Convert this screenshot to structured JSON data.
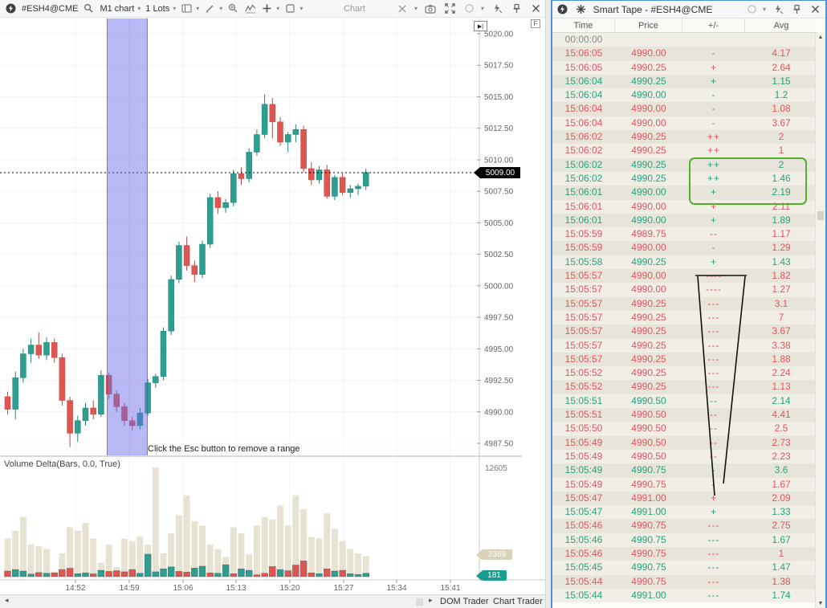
{
  "chart_toolbar": {
    "symbol": "#ESH4@CME",
    "timeframe": "M1 chart",
    "lots": "1 Lots",
    "title": "Chart"
  },
  "chart": {
    "last_price": "5009.00",
    "price_ticks": [
      "5020.00",
      "5017.50",
      "5015.00",
      "5012.50",
      "5010.00",
      "5007.50",
      "5005.00",
      "5002.50",
      "5000.00",
      "4997.50",
      "4995.00",
      "4992.50",
      "4990.00",
      "4987.50"
    ],
    "time_ticks": [
      "14:52",
      "14:59",
      "15:06",
      "15:13",
      "15:20",
      "15:27",
      "15:34",
      "15:41"
    ],
    "range_hint": "Click the Esc button to remove a range",
    "indicator_label": "Volume Delta(Bars, 0.0, True)",
    "goto_latest_label": "▶|",
    "f_badge": "F",
    "volume_axis_top": "12605",
    "volume_badge": "2369",
    "delta_badge": "181"
  },
  "chart_data": {
    "type": "candlestick_with_volume_delta",
    "title": "#ESH4@CME M1",
    "price_range": [
      4987.5,
      5020.0
    ],
    "candles": [
      [
        4991.2,
        4991.6,
        4989.8,
        4990.2
      ],
      [
        4990.2,
        4993.2,
        4989.4,
        4992.7
      ],
      [
        4992.7,
        4995.0,
        4992.3,
        4994.6
      ],
      [
        4994.6,
        4995.8,
        4993.9,
        4995.3
      ],
      [
        4995.3,
        4996.3,
        4994.2,
        4994.5
      ],
      [
        4994.5,
        4995.9,
        4994.1,
        4995.5
      ],
      [
        4995.5,
        4995.8,
        4993.9,
        4994.3
      ],
      [
        4994.3,
        4994.6,
        4990.5,
        4990.9
      ],
      [
        4990.9,
        4991.2,
        4987.2,
        4988.3
      ],
      [
        4988.3,
        4989.7,
        4987.6,
        4989.3
      ],
      [
        4989.3,
        4990.7,
        4988.9,
        4990.3
      ],
      [
        4990.3,
        4990.9,
        4989.4,
        4989.8
      ],
      [
        4989.8,
        4993.3,
        4989.6,
        4992.9
      ],
      [
        4992.9,
        4993.1,
        4991.0,
        4991.4
      ],
      [
        4991.4,
        4991.7,
        4990.0,
        4990.4
      ],
      [
        4990.4,
        4990.7,
        4988.9,
        4989.3
      ],
      [
        4989.3,
        4989.6,
        4988.5,
        4988.9
      ],
      [
        4988.9,
        4990.3,
        4988.6,
        4989.9
      ],
      [
        4989.9,
        4992.6,
        4989.7,
        4992.3
      ],
      [
        4992.3,
        4993.0,
        4991.9,
        4992.8
      ],
      [
        4992.8,
        4996.7,
        4992.5,
        4996.4
      ],
      [
        4996.4,
        5000.8,
        4996.1,
        5000.5
      ],
      [
        5000.5,
        5003.5,
        5000.2,
        5003.2
      ],
      [
        5003.2,
        5003.9,
        5001.2,
        5001.6
      ],
      [
        5001.6,
        5002.0,
        5000.3,
        5000.9
      ],
      [
        5000.9,
        5003.6,
        5000.6,
        5003.3
      ],
      [
        5003.3,
        5007.3,
        5003.0,
        5007.0
      ],
      [
        5007.0,
        5007.5,
        5005.7,
        5006.2
      ],
      [
        5006.2,
        5006.9,
        5005.8,
        5006.6
      ],
      [
        5006.6,
        5009.2,
        5006.3,
        5008.9
      ],
      [
        5008.9,
        5009.4,
        5008.0,
        5008.5
      ],
      [
        5008.5,
        5010.9,
        5008.2,
        5010.6
      ],
      [
        5010.6,
        5012.4,
        5010.3,
        5012.0
      ],
      [
        5012.0,
        5015.2,
        5011.7,
        5014.4
      ],
      [
        5014.4,
        5014.9,
        5011.7,
        5013.0
      ],
      [
        5013.0,
        5013.4,
        5011.1,
        5011.4
      ],
      [
        5011.4,
        5012.2,
        5010.6,
        5012.0
      ],
      [
        5012.0,
        5012.8,
        5011.4,
        5012.4
      ],
      [
        5012.4,
        5012.7,
        5009.0,
        5009.3
      ],
      [
        5009.3,
        5009.8,
        5008.0,
        5008.4
      ],
      [
        5008.4,
        5009.5,
        5008.1,
        5009.2
      ],
      [
        5009.2,
        5009.6,
        5006.9,
        5007.1
      ],
      [
        5007.1,
        5008.8,
        5006.8,
        5008.6
      ],
      [
        5008.6,
        5008.9,
        5007.2,
        5007.4
      ],
      [
        5007.4,
        5008.0,
        5007.0,
        5007.7
      ],
      [
        5007.7,
        5008.1,
        5007.2,
        5007.9
      ],
      [
        5007.9,
        5009.3,
        5007.6,
        5009.0
      ]
    ],
    "volumes": [
      4400,
      5300,
      6900,
      3700,
      3500,
      3200,
      600,
      2700,
      5700,
      5300,
      6200,
      4400,
      1600,
      3700,
      1100,
      4400,
      4100,
      4600,
      3700,
      12605,
      2700,
      5000,
      7100,
      9400,
      6400,
      5900,
      3700,
      3200,
      2300,
      5700,
      5000,
      2600,
      5900,
      6900,
      6600,
      8200,
      5900,
      9400,
      7800,
      4600,
      4400,
      7300,
      5500,
      4100,
      3200,
      2700,
      2369
    ],
    "deltas": [
      -300,
      380,
      300,
      140,
      -220,
      180,
      -200,
      -380,
      -450,
      160,
      200,
      -150,
      340,
      -280,
      -320,
      -260,
      -380,
      180,
      1200,
      260,
      420,
      520,
      -280,
      -240,
      460,
      560,
      -200,
      180,
      640,
      -160,
      420,
      340,
      -100,
      -180,
      -540,
      380,
      -320,
      -620,
      -840,
      -200,
      160,
      -420,
      300,
      -340,
      160,
      120,
      181
    ],
    "volume_max": 12605,
    "selected_range_candles": [
      13,
      18
    ]
  },
  "bottom_bar": {
    "left_arrow": "◂",
    "right_arrow": "▸",
    "tab1": "DOM Trader",
    "tab2": "Chart Trader"
  },
  "tape": {
    "title": "Smart Tape - #ESH4@CME",
    "columns": [
      "Time",
      "Price",
      "+/-",
      "Avg"
    ],
    "scroll_up": "▲",
    "scroll_down": "▼",
    "rows": [
      {
        "t": "00:00:00",
        "p": "",
        "s": "",
        "a": "",
        "c": "x"
      },
      {
        "t": "15:06:05",
        "p": "4990.00",
        "s": "-",
        "a": "4.17",
        "c": "r"
      },
      {
        "t": "15:06:05",
        "p": "4990.25",
        "s": "+",
        "a": "2.64",
        "c": "r"
      },
      {
        "t": "15:06:04",
        "p": "4990.25",
        "s": "+",
        "a": "1.15",
        "c": "g"
      },
      {
        "t": "15:06:04",
        "p": "4990.00",
        "s": "-",
        "a": "1.2",
        "c": "g"
      },
      {
        "t": "15:06:04",
        "p": "4990.00",
        "s": "-",
        "a": "1.08",
        "c": "r"
      },
      {
        "t": "15:06:04",
        "p": "4990.00",
        "s": "-",
        "a": "3.67",
        "c": "r"
      },
      {
        "t": "15:06:02",
        "p": "4990.25",
        "s": "++",
        "a": "2",
        "c": "r"
      },
      {
        "t": "15:06:02",
        "p": "4990.25",
        "s": "++",
        "a": "1",
        "c": "r"
      },
      {
        "t": "15:06:02",
        "p": "4990.25",
        "s": "++",
        "a": "2",
        "c": "g"
      },
      {
        "t": "15:06:02",
        "p": "4990.25",
        "s": "++",
        "a": "1.46",
        "c": "g"
      },
      {
        "t": "15:06:01",
        "p": "4990.00",
        "s": "+",
        "a": "2.19",
        "c": "g"
      },
      {
        "t": "15:06:01",
        "p": "4990.00",
        "s": "+",
        "a": "2.11",
        "c": "r"
      },
      {
        "t": "15:06:01",
        "p": "4990.00",
        "s": "+",
        "a": "1.89",
        "c": "g"
      },
      {
        "t": "15:05:59",
        "p": "4989.75",
        "s": "--",
        "a": "1.17",
        "c": "r"
      },
      {
        "t": "15:05:59",
        "p": "4990.00",
        "s": "-",
        "a": "1.29",
        "c": "r"
      },
      {
        "t": "15:05:58",
        "p": "4990.25",
        "s": "+",
        "a": "1.43",
        "c": "g"
      },
      {
        "t": "15:05:57",
        "p": "4990.00",
        "s": "----",
        "a": "1.82",
        "c": "r"
      },
      {
        "t": "15:05:57",
        "p": "4990.00",
        "s": "----",
        "a": "1.27",
        "c": "r"
      },
      {
        "t": "15:05:57",
        "p": "4990.25",
        "s": "---",
        "a": "3.1",
        "c": "r"
      },
      {
        "t": "15:05:57",
        "p": "4990.25",
        "s": "---",
        "a": "7",
        "c": "r"
      },
      {
        "t": "15:05:57",
        "p": "4990.25",
        "s": "---",
        "a": "3.67",
        "c": "r"
      },
      {
        "t": "15:05:57",
        "p": "4990.25",
        "s": "---",
        "a": "3.38",
        "c": "r"
      },
      {
        "t": "15:05:57",
        "p": "4990.25",
        "s": "---",
        "a": "1.88",
        "c": "r"
      },
      {
        "t": "15:05:52",
        "p": "4990.25",
        "s": "---",
        "a": "2.24",
        "c": "r"
      },
      {
        "t": "15:05:52",
        "p": "4990.25",
        "s": "---",
        "a": "1.13",
        "c": "r"
      },
      {
        "t": "15:05:51",
        "p": "4990.50",
        "s": "--",
        "a": "2.14",
        "c": "g"
      },
      {
        "t": "15:05:51",
        "p": "4990.50",
        "s": "--",
        "a": "4.41",
        "c": "r"
      },
      {
        "t": "15:05:50",
        "p": "4990.50",
        "s": "--",
        "a": "2.5",
        "c": "r"
      },
      {
        "t": "15:05:49",
        "p": "4990.50",
        "s": "--",
        "a": "2.73",
        "c": "r"
      },
      {
        "t": "15:05:49",
        "p": "4990.50",
        "s": "--",
        "a": "2.23",
        "c": "r"
      },
      {
        "t": "15:05:49",
        "p": "4990.75",
        "s": "-",
        "a": "3.6",
        "c": "g"
      },
      {
        "t": "15:05:49",
        "p": "4990.75",
        "s": "-",
        "a": "1.67",
        "c": "r"
      },
      {
        "t": "15:05:47",
        "p": "4991.00",
        "s": "+",
        "a": "2.09",
        "c": "r"
      },
      {
        "t": "15:05:47",
        "p": "4991.00",
        "s": "+",
        "a": "1.33",
        "c": "g"
      },
      {
        "t": "15:05:46",
        "p": "4990.75",
        "s": "---",
        "a": "2.75",
        "c": "r"
      },
      {
        "t": "15:05:46",
        "p": "4990.75",
        "s": "---",
        "a": "1.67",
        "c": "g"
      },
      {
        "t": "15:05:46",
        "p": "4990.75",
        "s": "---",
        "a": "1",
        "c": "r"
      },
      {
        "t": "15:05:45",
        "p": "4990.75",
        "s": "---",
        "a": "1.47",
        "c": "g"
      },
      {
        "t": "15:05:44",
        "p": "4990.75",
        "s": "---",
        "a": "1.38",
        "c": "r"
      },
      {
        "t": "15:05:44",
        "p": "4991.00",
        "s": "---",
        "a": "1.74",
        "c": "g"
      }
    ],
    "annotations": {
      "highlight_box_color": "#55ad2e",
      "funnel_color": "#111111"
    }
  },
  "colors": {
    "candle_up": "#2d9e8f",
    "candle_down": "#de5650",
    "range_band": "rgba(104,107,232,0.47)",
    "volume_bar": "#e7e2d1",
    "tape_red": "#e25562",
    "tape_green": "#27a17f",
    "badge_teal": "#199d8d",
    "badge_beige": "#d9d2ba"
  }
}
